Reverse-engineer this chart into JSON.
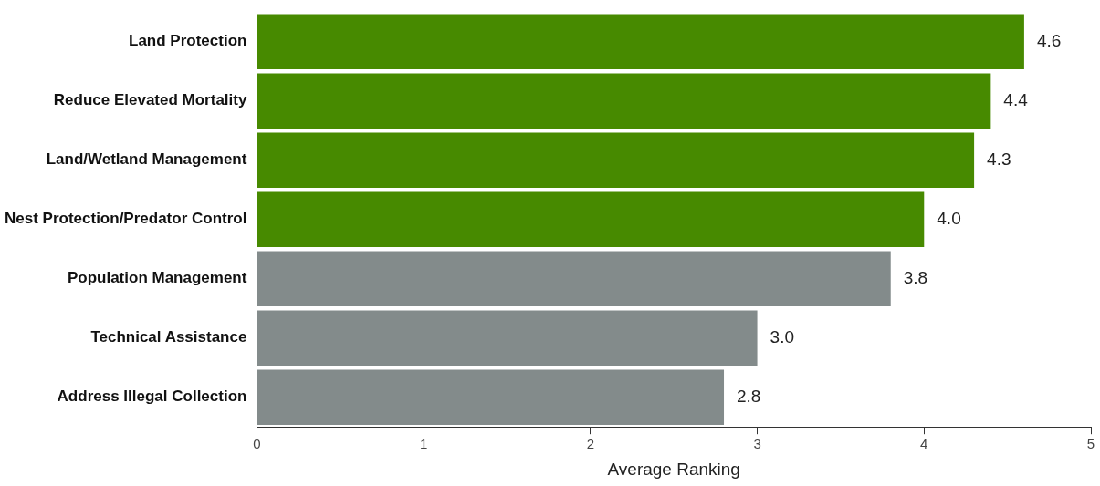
{
  "chart_data": {
    "type": "bar",
    "orientation": "horizontal",
    "xlabel": "Average Ranking",
    "categories": [
      "Land Protection",
      "Reduce Elevated Mortality",
      "Land/Wetland Management",
      "Nest Protection/Predator Control",
      "Population Management",
      "Technical Assistance",
      "Address Illegal Collection"
    ],
    "values": [
      4.6,
      4.4,
      4.3,
      4.0,
      3.8,
      3.0,
      2.8
    ],
    "colors": [
      "#478a00",
      "#478a00",
      "#478a00",
      "#478a00",
      "#838b8b",
      "#838b8b",
      "#838b8b"
    ],
    "value_labels": [
      "4.6",
      "4.4",
      "4.3",
      "4.0",
      "3.8",
      "3.0",
      "2.8"
    ],
    "xlim": [
      0,
      5
    ],
    "xticks": [
      0,
      1,
      2,
      3,
      4,
      5
    ],
    "grid": false,
    "legend": false
  }
}
